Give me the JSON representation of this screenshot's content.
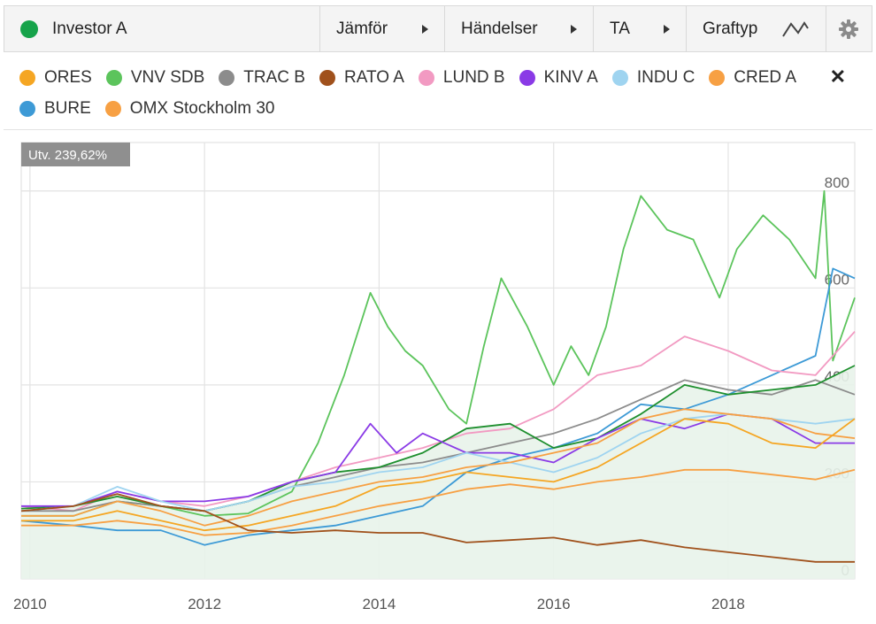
{
  "toolbar": {
    "title": "Investor A",
    "title_dot_color": "#16a34a",
    "compare_label": "Jämför",
    "events_label": "Händelser",
    "ta_label": "TA",
    "graphtype_label": "Graftyp"
  },
  "legend": [
    {
      "name": "ORES",
      "color": "#f5a623"
    },
    {
      "name": "VNV SDB",
      "color": "#5cc45c"
    },
    {
      "name": "TRAC B",
      "color": "#8c8c8c"
    },
    {
      "name": "RATO A",
      "color": "#a0511c"
    },
    {
      "name": "LUND B",
      "color": "#f29ac2"
    },
    {
      "name": "KINV A",
      "color": "#8a3ae6"
    },
    {
      "name": "INDU C",
      "color": "#9fd4f0"
    },
    {
      "name": "CRED A",
      "color": "#f7a043"
    },
    {
      "name": "BURE",
      "color": "#3d9ad6"
    },
    {
      "name": "OMX Stockholm 30",
      "color": "#f7a043"
    }
  ],
  "close_label": "✕",
  "chart_data": {
    "type": "line",
    "badge": "Utv. 239,62%",
    "xlabels": [
      "2010",
      "2012",
      "2014",
      "2016",
      "2018"
    ],
    "ylabels": [
      "0",
      "200",
      "400",
      "600",
      "800"
    ],
    "xlim": [
      2009.9,
      2019.45
    ],
    "ylim": [
      0,
      900
    ],
    "area_series": "Investor A",
    "series": [
      {
        "name": "VNV SDB",
        "color": "#5cc45c",
        "x": [
          2009.9,
          2010.5,
          2011,
          2011.5,
          2012,
          2012.5,
          2013,
          2013.3,
          2013.6,
          2013.9,
          2014.1,
          2014.3,
          2014.5,
          2014.8,
          2015,
          2015.2,
          2015.4,
          2015.7,
          2016,
          2016.2,
          2016.4,
          2016.6,
          2016.8,
          2017,
          2017.3,
          2017.6,
          2017.9,
          2018.1,
          2018.4,
          2018.7,
          2019,
          2019.1,
          2019.2,
          2019.45
        ],
        "y": [
          130,
          130,
          160,
          150,
          130,
          135,
          180,
          280,
          420,
          590,
          520,
          470,
          440,
          350,
          320,
          480,
          620,
          520,
          400,
          480,
          420,
          520,
          680,
          790,
          720,
          700,
          580,
          680,
          750,
          700,
          620,
          800,
          450,
          580
        ]
      },
      {
        "name": "BURE",
        "color": "#3d9ad6",
        "x": [
          2009.9,
          2010.5,
          2011,
          2011.5,
          2012,
          2012.5,
          2013,
          2013.5,
          2014,
          2014.5,
          2015,
          2015.5,
          2016,
          2016.5,
          2017,
          2017.5,
          2018,
          2018.5,
          2019,
          2019.2,
          2019.45
        ],
        "y": [
          120,
          110,
          100,
          100,
          70,
          90,
          100,
          110,
          130,
          150,
          220,
          250,
          270,
          300,
          360,
          350,
          380,
          420,
          460,
          640,
          620
        ]
      },
      {
        "name": "LUND B",
        "color": "#f29ac2",
        "x": [
          2009.9,
          2010.5,
          2011,
          2011.5,
          2012,
          2012.5,
          2013,
          2013.5,
          2014,
          2014.5,
          2015,
          2015.5,
          2016,
          2016.5,
          2017,
          2017.5,
          2018,
          2018.5,
          2019,
          2019.45
        ],
        "y": [
          150,
          140,
          180,
          160,
          150,
          170,
          200,
          230,
          250,
          270,
          300,
          310,
          350,
          420,
          440,
          500,
          470,
          430,
          420,
          510
        ]
      },
      {
        "name": "TRAC B",
        "color": "#8c8c8c",
        "x": [
          2009.9,
          2010.5,
          2011,
          2011.5,
          2012,
          2012.5,
          2013,
          2013.5,
          2014,
          2014.5,
          2015,
          2015.5,
          2016,
          2016.5,
          2017,
          2017.5,
          2018,
          2018.5,
          2019,
          2019.45
        ],
        "y": [
          140,
          140,
          160,
          150,
          140,
          160,
          190,
          210,
          230,
          240,
          260,
          280,
          300,
          330,
          370,
          410,
          390,
          380,
          410,
          380
        ]
      },
      {
        "name": "Investor A",
        "color": "#1e8f2e",
        "x": [
          2009.9,
          2010.5,
          2011,
          2011.5,
          2012,
          2012.5,
          2013,
          2013.5,
          2014,
          2014.5,
          2015,
          2015.5,
          2016,
          2016.5,
          2017,
          2017.5,
          2018,
          2018.5,
          2019,
          2019.45
        ],
        "y": [
          145,
          150,
          170,
          150,
          140,
          160,
          200,
          220,
          230,
          260,
          310,
          320,
          270,
          290,
          340,
          400,
          380,
          390,
          400,
          440
        ]
      },
      {
        "name": "KINV A",
        "color": "#8a3ae6",
        "x": [
          2009.9,
          2010.5,
          2011,
          2011.5,
          2012,
          2012.5,
          2013,
          2013.5,
          2013.9,
          2014.2,
          2014.5,
          2015,
          2015.5,
          2016,
          2016.5,
          2017,
          2017.5,
          2018,
          2018.5,
          2019,
          2019.45
        ],
        "y": [
          150,
          150,
          180,
          160,
          160,
          170,
          200,
          220,
          320,
          260,
          300,
          260,
          260,
          240,
          290,
          330,
          310,
          340,
          330,
          280,
          280
        ]
      },
      {
        "name": "INDU C",
        "color": "#9fd4f0",
        "x": [
          2009.9,
          2010.5,
          2011,
          2011.5,
          2012,
          2012.5,
          2013,
          2013.5,
          2014,
          2014.5,
          2015,
          2015.5,
          2016,
          2016.5,
          2017,
          2017.5,
          2018,
          2018.5,
          2019,
          2019.45
        ],
        "y": [
          140,
          150,
          190,
          160,
          140,
          160,
          190,
          200,
          220,
          230,
          260,
          240,
          220,
          250,
          300,
          330,
          340,
          330,
          320,
          330
        ]
      },
      {
        "name": "CRED A",
        "color": "#f7a043",
        "x": [
          2009.9,
          2010.5,
          2011,
          2011.5,
          2012,
          2012.5,
          2013,
          2013.5,
          2014,
          2014.5,
          2015,
          2015.5,
          2016,
          2016.5,
          2017,
          2017.5,
          2018,
          2018.5,
          2019,
          2019.45
        ],
        "y": [
          130,
          130,
          160,
          140,
          110,
          130,
          160,
          180,
          200,
          210,
          230,
          240,
          260,
          280,
          330,
          350,
          340,
          330,
          300,
          290
        ]
      },
      {
        "name": "ORES",
        "color": "#f5a623",
        "x": [
          2009.9,
          2010.5,
          2011,
          2011.5,
          2012,
          2012.5,
          2013,
          2013.5,
          2014,
          2014.5,
          2015,
          2015.5,
          2016,
          2016.5,
          2017,
          2017.5,
          2018,
          2018.5,
          2019,
          2019.45
        ],
        "y": [
          120,
          120,
          140,
          120,
          100,
          110,
          130,
          150,
          190,
          200,
          220,
          210,
          200,
          230,
          280,
          330,
          320,
          280,
          270,
          330
        ]
      },
      {
        "name": "OMX Stockholm 30",
        "color": "#f7a043",
        "x": [
          2009.9,
          2010.5,
          2011,
          2011.5,
          2012,
          2012.5,
          2013,
          2013.5,
          2014,
          2014.5,
          2015,
          2015.5,
          2016,
          2016.5,
          2017,
          2017.5,
          2018,
          2018.5,
          2019,
          2019.45
        ],
        "y": [
          110,
          110,
          120,
          110,
          90,
          95,
          110,
          130,
          150,
          165,
          185,
          195,
          185,
          200,
          210,
          225,
          225,
          215,
          205,
          225
        ]
      },
      {
        "name": "RATO A",
        "color": "#a0511c",
        "x": [
          2009.9,
          2010.5,
          2011,
          2011.5,
          2012,
          2012.5,
          2013,
          2013.5,
          2014,
          2014.5,
          2015,
          2015.5,
          2016,
          2016.5,
          2017,
          2017.5,
          2018,
          2018.5,
          2019,
          2019.45
        ],
        "y": [
          140,
          150,
          175,
          150,
          140,
          100,
          95,
          100,
          95,
          95,
          75,
          80,
          85,
          70,
          80,
          65,
          55,
          45,
          35,
          35
        ]
      }
    ]
  }
}
